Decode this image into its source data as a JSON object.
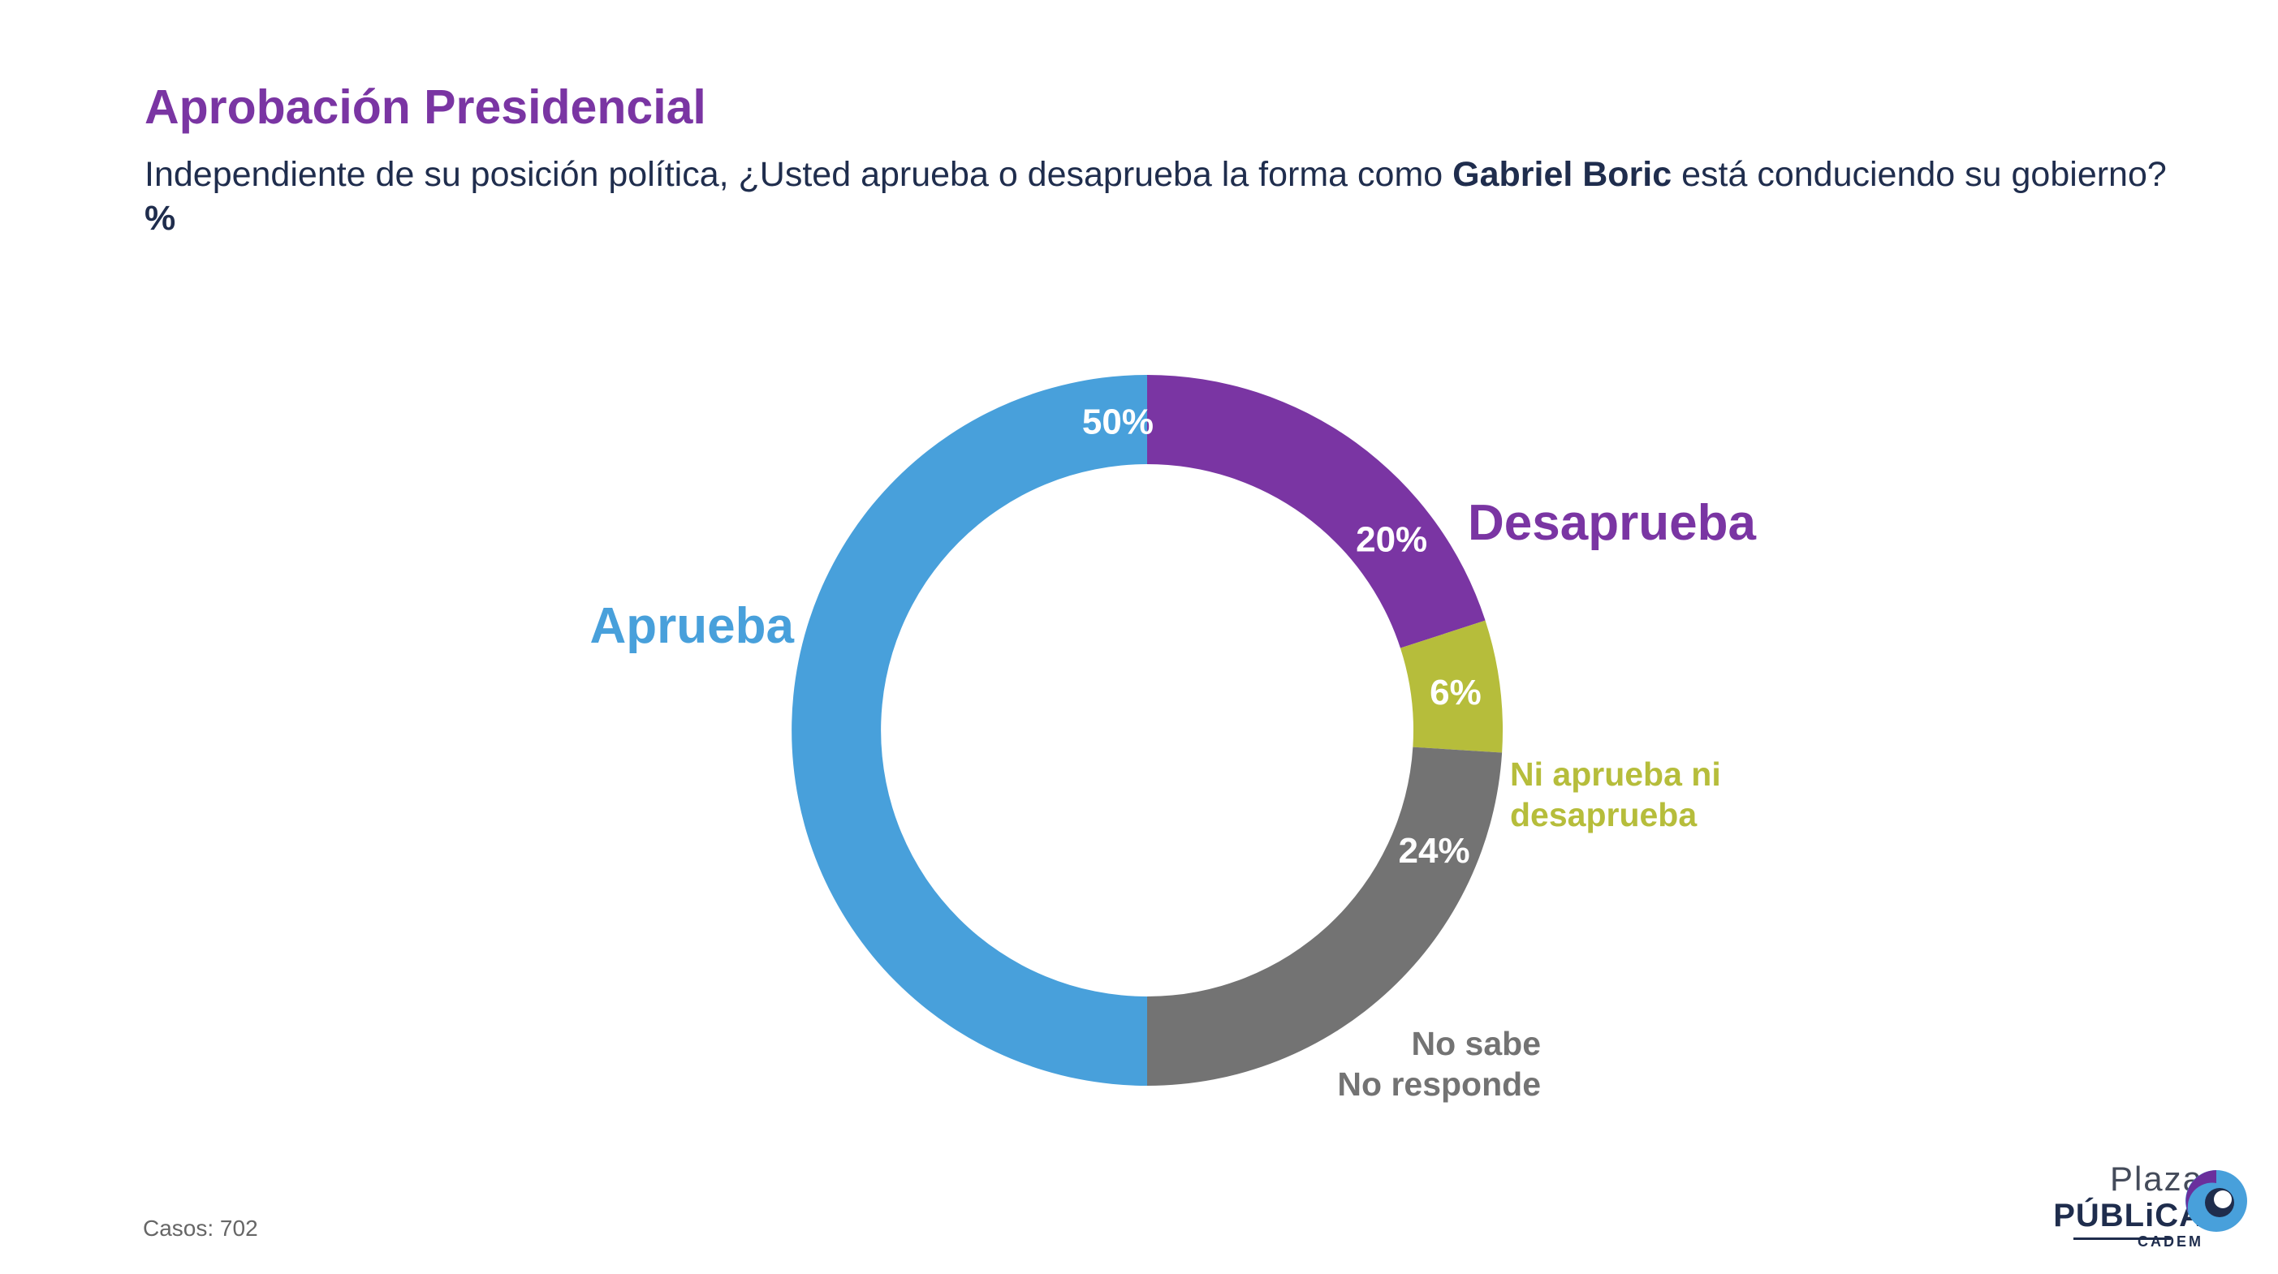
{
  "header": {
    "title": "Aprobación Presidencial",
    "question_pre": "Independiente de su posición política, ¿Usted aprueba o desaprueba la forma como ",
    "question_name": "Gabriel Boric",
    "question_post": " está conduciendo su gobierno? ",
    "question_unit": "%"
  },
  "footer": {
    "casos": "Casos: 702"
  },
  "logo": {
    "plaza": "Plaza",
    "publica": "PÚBLiCA",
    "cadem": "CADEM"
  },
  "chart_data": {
    "type": "pie",
    "style": "donut",
    "start": "12 o'clock, clockwise",
    "slices": [
      {
        "name": "Desaprueba",
        "value": 20,
        "value_label": "20%",
        "color": "#7a35a3",
        "label_color": "#7a35a3"
      },
      {
        "name": "Ni aprueba ni desaprueba",
        "value": 6,
        "value_label": "6%",
        "color": "#b6bd3b",
        "label_color": "#b6bd3b",
        "label_lines": [
          "Ni aprueba ni",
          "desaprueba"
        ]
      },
      {
        "name": "No sabe No responde",
        "value": 24,
        "value_label": "24%",
        "color": "#737373",
        "label_color": "#737373",
        "label_lines": [
          "No sabe",
          "No responde"
        ]
      },
      {
        "name": "Aprueba",
        "value": 50,
        "value_label": "50%",
        "color": "#48a0db",
        "label_color": "#48a0db"
      }
    ]
  }
}
